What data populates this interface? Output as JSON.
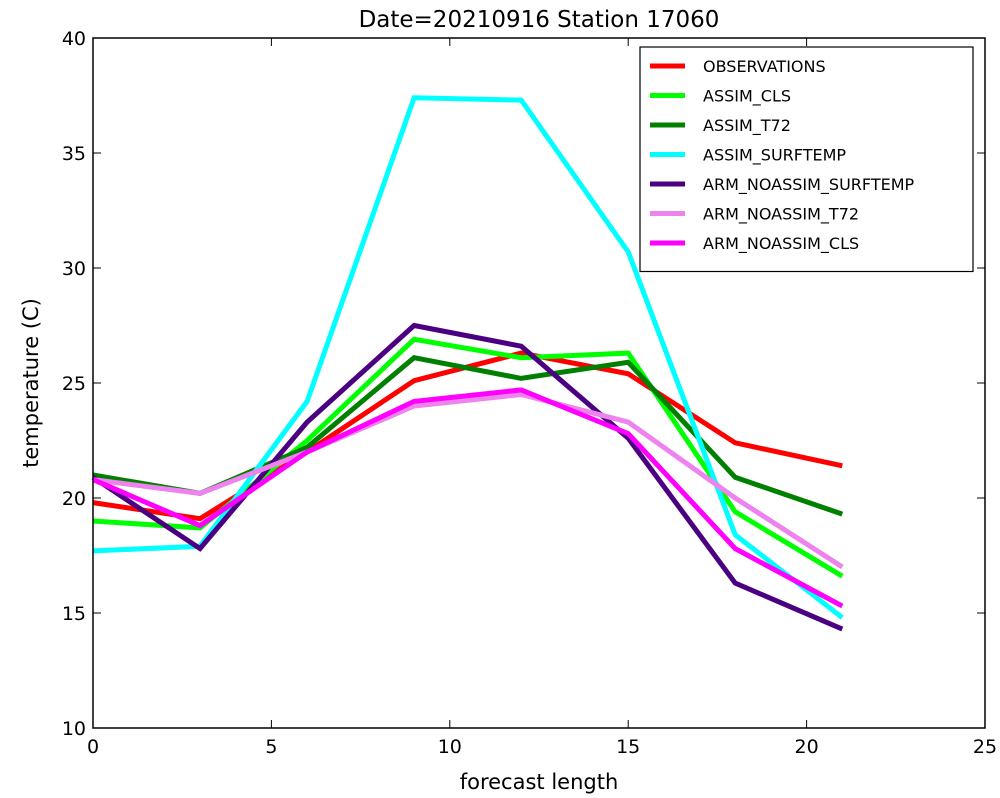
{
  "chart_data": {
    "type": "line",
    "title": "Date=20210916 Station 17060",
    "xlabel": "forecast length",
    "ylabel": "temperature (C)",
    "xlim": [
      0,
      25
    ],
    "ylim": [
      10,
      40
    ],
    "xticks": [
      0,
      5,
      10,
      15,
      20,
      25
    ],
    "yticks": [
      10,
      15,
      20,
      25,
      30,
      35,
      40
    ],
    "grid": false,
    "legend_position": "top-right",
    "x": [
      0,
      3,
      6,
      9,
      12,
      15,
      18,
      21
    ],
    "series": [
      {
        "name": "OBSERVATIONS",
        "color": "#ff0000",
        "values": [
          19.8,
          19.1,
          22.0,
          25.1,
          26.3,
          25.4,
          22.4,
          21.4
        ]
      },
      {
        "name": "ASSIM_CLS",
        "color": "#00ff00",
        "values": [
          19.0,
          18.7,
          22.5,
          26.9,
          26.1,
          26.3,
          19.4,
          16.6
        ]
      },
      {
        "name": "ASSIM_T72",
        "color": "#008000",
        "values": [
          21.0,
          20.2,
          22.2,
          26.1,
          25.2,
          25.9,
          20.9,
          19.3
        ]
      },
      {
        "name": "ASSIM_SURFTEMP",
        "color": "#00ffff",
        "values": [
          17.7,
          17.9,
          24.2,
          37.4,
          37.3,
          30.7,
          18.4,
          14.8
        ]
      },
      {
        "name": "ARM_NOASSIM_SURFTEMP",
        "color": "#4b0082",
        "values": [
          20.9,
          17.8,
          23.3,
          27.5,
          26.6,
          22.6,
          16.3,
          14.3
        ]
      },
      {
        "name": "ARM_NOASSIM_T72",
        "color": "#ee82ee",
        "values": [
          20.8,
          20.2,
          22.0,
          24.0,
          24.5,
          23.3,
          20.0,
          17.0
        ]
      },
      {
        "name": "ARM_NOASSIM_CLS",
        "color": "#ff00ff",
        "values": [
          20.8,
          18.8,
          22.0,
          24.2,
          24.7,
          22.8,
          17.8,
          15.3
        ]
      }
    ]
  }
}
